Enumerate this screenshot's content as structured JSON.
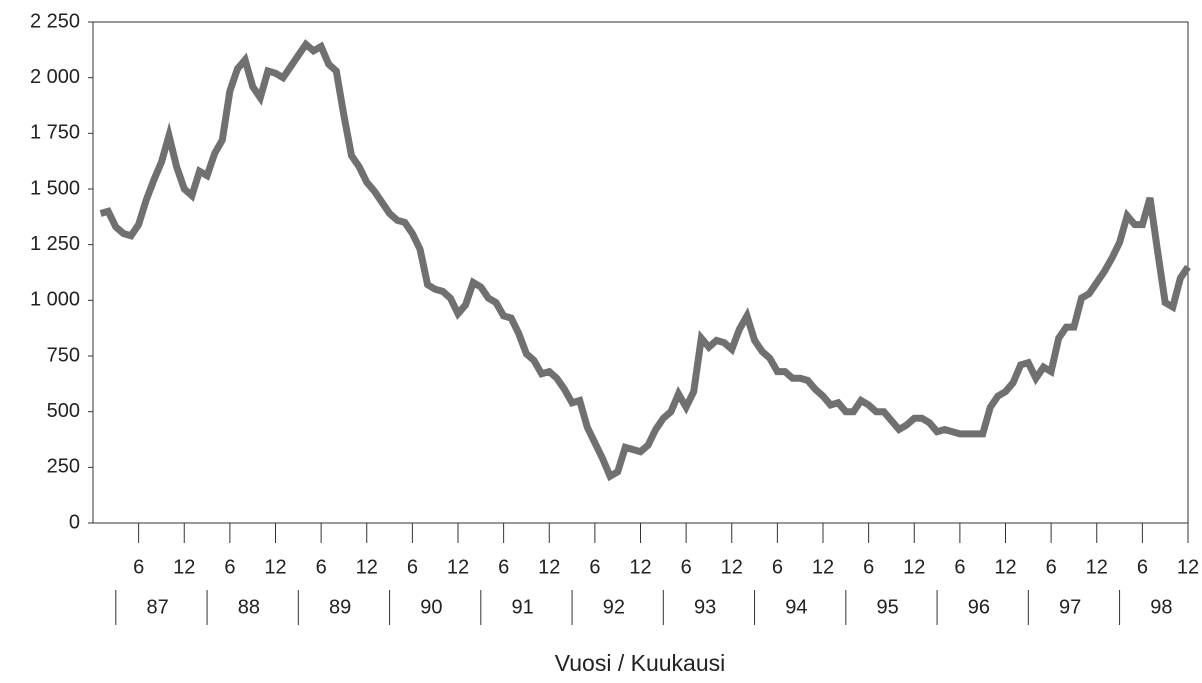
{
  "chart_data": {
    "type": "line",
    "x_label": "Vuosi / Kuukausi",
    "years": [
      "87",
      "88",
      "89",
      "90",
      "91",
      "92",
      "93",
      "94",
      "95",
      "96",
      "97",
      "98"
    ],
    "categories": [
      null,
      null,
      null,
      null,
      null,
      6,
      null,
      null,
      null,
      null,
      null,
      12,
      null,
      null,
      null,
      null,
      null,
      6,
      null,
      null,
      null,
      null,
      null,
      12,
      null,
      null,
      null,
      null,
      null,
      6,
      null,
      null,
      null,
      null,
      null,
      12,
      null,
      null,
      null,
      null,
      null,
      6,
      null,
      null,
      null,
      null,
      null,
      12,
      null,
      null,
      null,
      null,
      null,
      6,
      null,
      null,
      null,
      null,
      null,
      12,
      null,
      null,
      null,
      null,
      null,
      6,
      null,
      null,
      null,
      null,
      null,
      12,
      null,
      null,
      null,
      null,
      null,
      6,
      null,
      null,
      null,
      null,
      null,
      12,
      null,
      null,
      null,
      null,
      null,
      6,
      null,
      null,
      null,
      null,
      null,
      12,
      null,
      null,
      null,
      null,
      null,
      6,
      null,
      null,
      null,
      null,
      null,
      12,
      null,
      null,
      null,
      null,
      null,
      6,
      null,
      null,
      null,
      null,
      null,
      12,
      null,
      null,
      null,
      null,
      null,
      6,
      null,
      null,
      null,
      null,
      null,
      12,
      null,
      null,
      null,
      null,
      null,
      6,
      null,
      null,
      null,
      null,
      null,
      12
    ],
    "values": [
      1390,
      1400,
      1330,
      1300,
      1290,
      1340,
      1450,
      1540,
      1620,
      1740,
      1600,
      1500,
      1470,
      1580,
      1560,
      1660,
      1720,
      1940,
      2040,
      2080,
      1960,
      1910,
      2030,
      2020,
      2000,
      2050,
      2100,
      2150,
      2120,
      2140,
      2060,
      2030,
      1830,
      1650,
      1600,
      1530,
      1490,
      1440,
      1390,
      1360,
      1350,
      1300,
      1230,
      1070,
      1050,
      1040,
      1010,
      940,
      980,
      1080,
      1060,
      1010,
      990,
      930,
      920,
      850,
      760,
      730,
      670,
      680,
      650,
      600,
      540,
      550,
      430,
      360,
      290,
      210,
      230,
      340,
      330,
      320,
      350,
      420,
      470,
      500,
      580,
      520,
      590,
      830,
      790,
      820,
      810,
      780,
      870,
      930,
      820,
      770,
      740,
      680,
      680,
      650,
      650,
      640,
      600,
      570,
      530,
      540,
      500,
      500,
      550,
      530,
      500,
      500,
      460,
      420,
      440,
      470,
      470,
      450,
      410,
      420,
      410,
      400,
      400,
      400,
      400,
      520,
      570,
      590,
      630,
      710,
      720,
      650,
      700,
      680,
      830,
      880,
      880,
      1010,
      1030,
      1080,
      1130,
      1190,
      1260,
      1380,
      1340,
      1340,
      1460,
      1220,
      990,
      970,
      1100,
      1150
    ],
    "color": "#707070",
    "ylim": [
      0,
      2250
    ],
    "yticks": [
      0,
      250,
      500,
      750,
      {
        "value": 1000,
        "label": "1 000"
      },
      {
        "value": 1250,
        "label": "1 250"
      },
      {
        "value": 1500,
        "label": "1 500"
      },
      {
        "value": 1750,
        "label": "1 750"
      },
      {
        "value": 2000,
        "label": "2 000"
      },
      {
        "value": 2250,
        "label": "2 250"
      }
    ]
  }
}
